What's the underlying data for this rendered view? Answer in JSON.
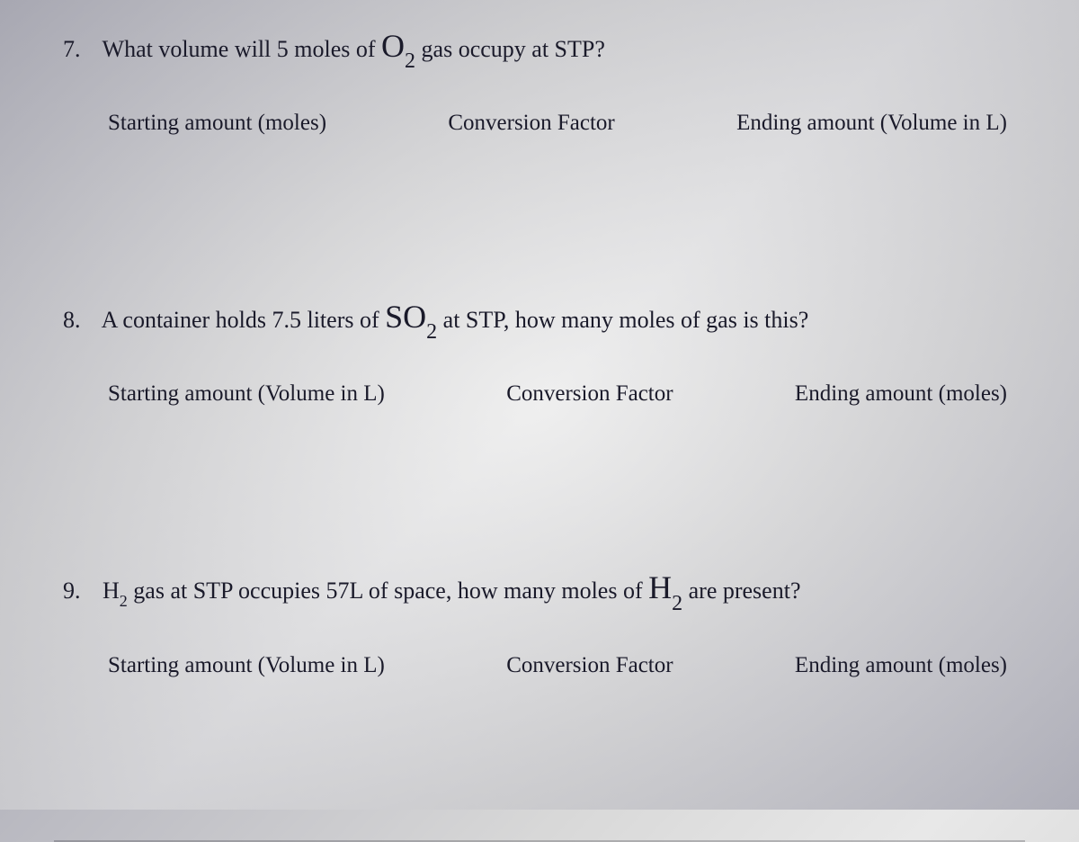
{
  "questions": [
    {
      "number": "7.",
      "text_before": "What volume will 5 moles of ",
      "formula_base": "O",
      "formula_sub": "2",
      "text_after": " gas occupy at STP?",
      "col_left": "Starting amount (moles)",
      "col_mid": "Conversion Factor",
      "col_right": "Ending amount (Volume in L)",
      "formula_size": "large"
    },
    {
      "number": "8.",
      "text_before": "A container holds 7.5 liters of ",
      "formula_base": "SO",
      "formula_sub": "2",
      "text_after": " at STP, how many moles of gas is this?",
      "col_left": "Starting amount (Volume in L)",
      "col_mid": "Conversion Factor",
      "col_right": "Ending amount (moles)",
      "formula_size": "large"
    },
    {
      "number": "9.",
      "text_before_small": "H",
      "sub_small": "2",
      "text_mid": " gas at STP occupies 57L of space, how many moles of ",
      "formula_base": "H",
      "formula_sub": "2",
      "text_after": " are present?",
      "col_left": "Starting amount (Volume in L)",
      "col_mid": "Conversion Factor",
      "col_right": "Ending amount (moles)",
      "formula_size": "large"
    }
  ],
  "styling": {
    "background_gradient_start": "#b8b8c0",
    "background_gradient_mid": "#e8e8e8",
    "background_gradient_end": "#c0c0c8",
    "text_color": "#1a1a2a",
    "question_fontsize": 26,
    "formula_fontsize": 36,
    "columns_fontsize": 25,
    "font_family": "Times New Roman"
  }
}
